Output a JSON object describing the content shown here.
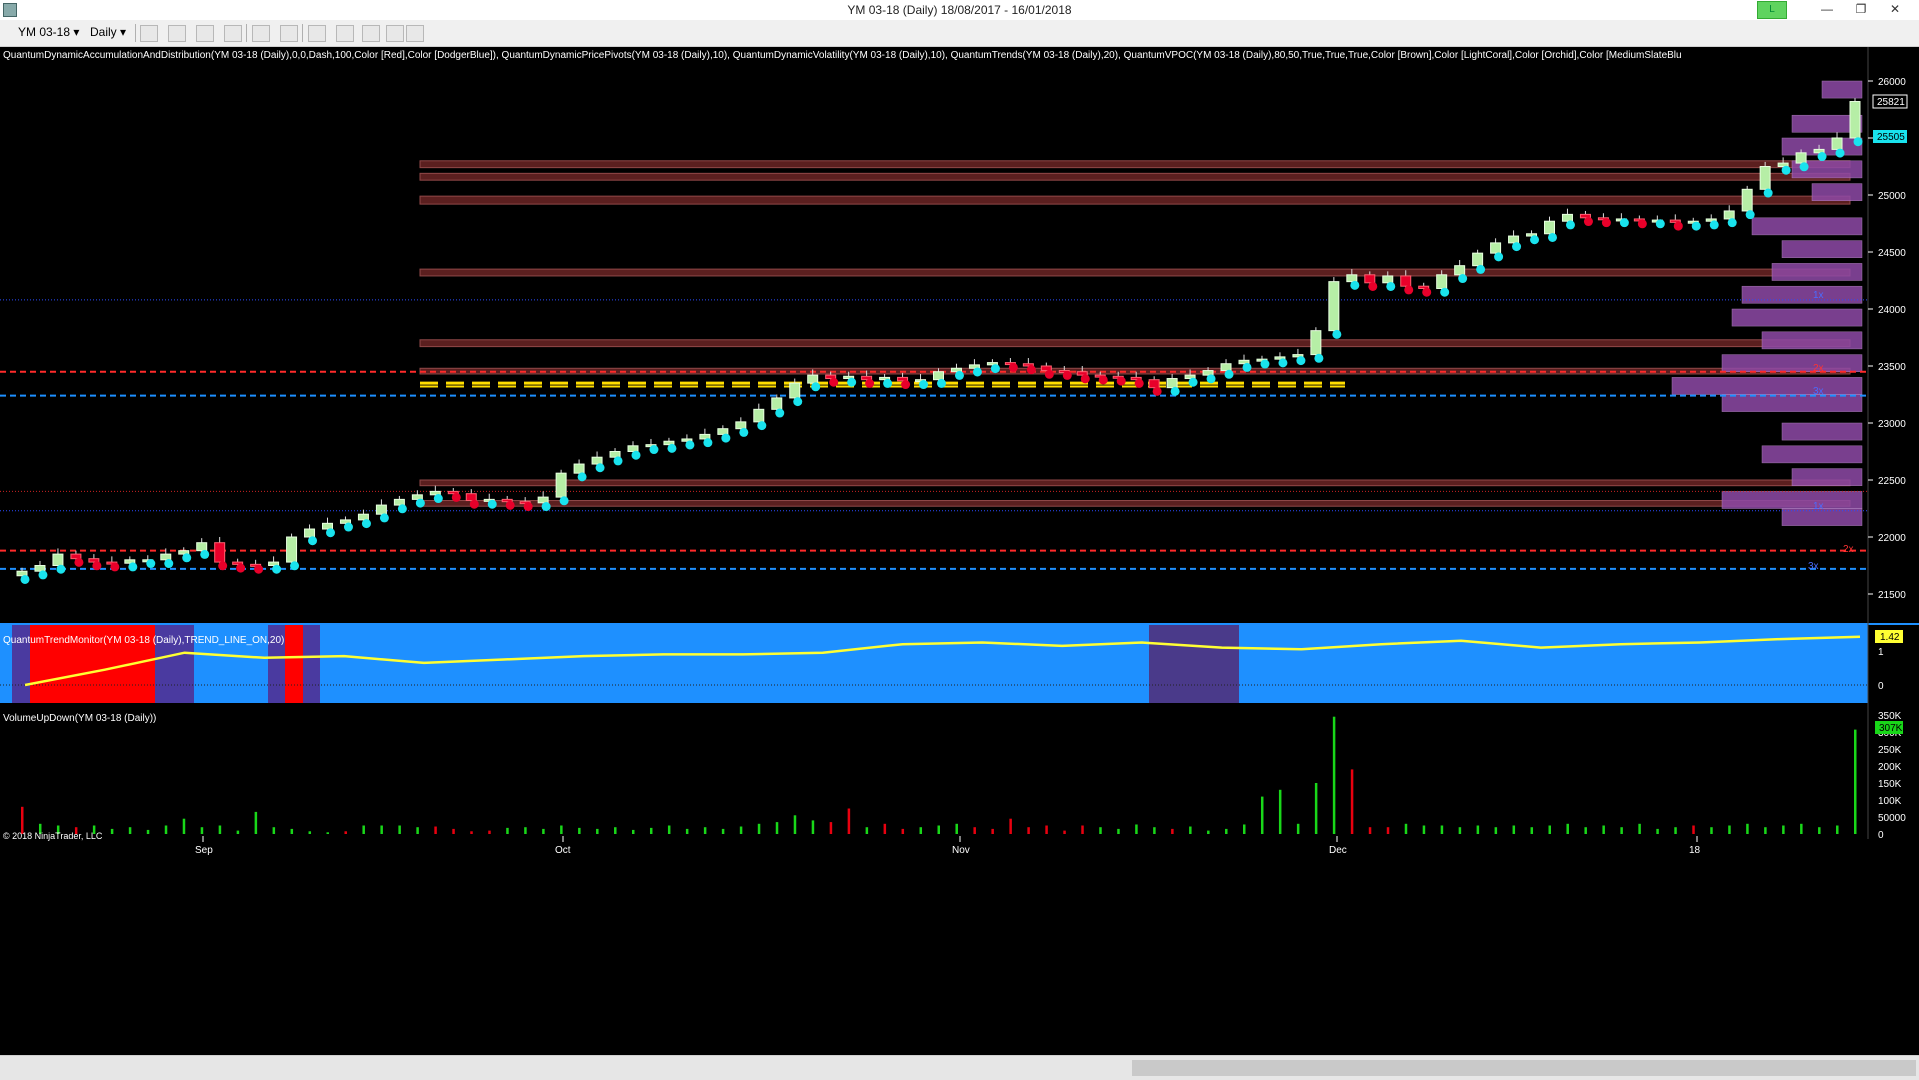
{
  "window": {
    "title": "YM 03-18 (Daily)  18/08/2017 - 16/01/2018",
    "account_badge": "L"
  },
  "toolbar": {
    "instrument": "YM 03-18",
    "period": "Daily"
  },
  "indicators_line": "QuantumDynamicAccumulationAndDistribution(YM 03-18 (Daily),0,0,Dash,100,Color [Red],Color [DodgerBlue]), QuantumDynamicPricePivots(YM 03-18 (Daily),10), QuantumDynamicVolatility(YM 03-18 (Daily),10), QuantumTrends(YM 03-18 (Daily),20), QuantumVPOC(YM 03-18 (Daily),80,50,True,True,True,Color [Brown],Color [LightCoral],Color [Orchid],Color [MediumSlateBlu",
  "price_axis": {
    "ticks": [
      "26000",
      "25500",
      "25000",
      "24500",
      "24000",
      "23500",
      "23000",
      "22500",
      "22000",
      "21500"
    ],
    "tick_values": [
      26000,
      25500,
      25000,
      24500,
      24000,
      23500,
      23000,
      22500,
      22000,
      21500
    ],
    "last_price_label": "25821",
    "current_label": "25505"
  },
  "level_markers": {
    "one_x_top": "1x",
    "one_x_bottom": "1x",
    "two_x": "2x",
    "three_x": "3x",
    "two_x_mid": "2x",
    "three_x_mid": "3x"
  },
  "trend_monitor": {
    "label": "QuantumTrendMonitor(YM 03-18 (Daily),TREND_LINE_ON,20)",
    "ticks": [
      "1",
      "0"
    ],
    "value_label": "1.42"
  },
  "volume": {
    "label": "VolumeUpDown(YM 03-18 (Daily))",
    "ticks": [
      "350K",
      "300K",
      "250K",
      "200K",
      "150K",
      "100K",
      "50000",
      "0"
    ],
    "value_label": "307K",
    "copyright": "© 2018 NinjaTrader, LLC"
  },
  "time_axis": {
    "labels": [
      "Sep",
      "Oct",
      "Nov",
      "Dec",
      "18"
    ]
  },
  "colors": {
    "background": "#000000",
    "up_candle": "#b6eea6",
    "down_candle": "#e8002a",
    "pivot_dot": "#19e3ee",
    "trend_bg": "#1e90ff",
    "trend_line": "#ffff33",
    "vol_up": "#19d719",
    "vol_down": "#e8000f",
    "vpoc": "#8f4aa7"
  },
  "chart_data": {
    "type": "candlestick",
    "instrument": "YM 03-18 (Daily)",
    "date_range": [
      "18/08/2017",
      "16/01/2018"
    ],
    "price_range": [
      21250,
      26400
    ],
    "close": [
      21700,
      21750,
      21850,
      21810,
      21780,
      21770,
      21800,
      21800,
      21850,
      21880,
      21950,
      21780,
      21760,
      21750,
      21780,
      22000,
      22070,
      22120,
      22150,
      22200,
      22280,
      22330,
      22370,
      22400,
      22380,
      22320,
      22330,
      22310,
      22300,
      22350,
      22560,
      22640,
      22700,
      22750,
      22800,
      22810,
      22840,
      22860,
      22900,
      22950,
      23010,
      23120,
      23220,
      23350,
      23420,
      23390,
      23410,
      23380,
      23400,
      23370,
      23380,
      23450,
      23480,
      23510,
      23530,
      23520,
      23500,
      23460,
      23450,
      23420,
      23410,
      23400,
      23380,
      23310,
      23390,
      23420,
      23460,
      23520,
      23550,
      23560,
      23580,
      23600,
      23810,
      24240,
      24300,
      24230,
      24290,
      24200,
      24180,
      24300,
      24380,
      24490,
      24580,
      24640,
      24660,
      24770,
      24830,
      24800,
      24790,
      24790,
      24780,
      24780,
      24760,
      24770,
      24790,
      24860,
      25050,
      25250,
      25280,
      25370,
      25400,
      25500,
      25820
    ],
    "volume_k": [
      80,
      30,
      25,
      20,
      25,
      15,
      20,
      12,
      25,
      45,
      20,
      25,
      10,
      65,
      20,
      15,
      8,
      5,
      8,
      25,
      25,
      25,
      20,
      22,
      15,
      8,
      10,
      18,
      20,
      15,
      25,
      18,
      15,
      20,
      12,
      18,
      25,
      15,
      20,
      15,
      22,
      30,
      35,
      55,
      40,
      35,
      75,
      20,
      30,
      15,
      20,
      25,
      30,
      20,
      15,
      45,
      20,
      25,
      10,
      25,
      20,
      15,
      28,
      20,
      15,
      22,
      10,
      15,
      28,
      110,
      130,
      30,
      150,
      345,
      190,
      20,
      20,
      30,
      25,
      25,
      20,
      25,
      20,
      25,
      20,
      25,
      30,
      20,
      25,
      20,
      30,
      15,
      20,
      25,
      20,
      25,
      30,
      20,
      25,
      30,
      20,
      25,
      307
    ],
    "vol_dir": [
      "d",
      "u",
      "u",
      "d",
      "u",
      "u",
      "u",
      "u",
      "u",
      "u",
      "u",
      "u",
      "u",
      "u",
      "u",
      "u",
      "u",
      "u",
      "d",
      "u",
      "u",
      "u",
      "u",
      "d",
      "d",
      "d",
      "d",
      "u",
      "u",
      "u",
      "u",
      "u",
      "u",
      "u",
      "u",
      "u",
      "u",
      "u",
      "u",
      "u",
      "u",
      "u",
      "u",
      "u",
      "u",
      "d",
      "d",
      "u",
      "d",
      "d",
      "u",
      "u",
      "u",
      "d",
      "d",
      "d",
      "d",
      "d",
      "d",
      "d",
      "u",
      "u",
      "u",
      "u",
      "d",
      "u",
      "u",
      "u",
      "u",
      "u",
      "u",
      "u",
      "u",
      "u",
      "d",
      "d",
      "d",
      "u",
      "u",
      "u",
      "u",
      "u",
      "u",
      "u",
      "u",
      "u",
      "u",
      "u",
      "u",
      "u",
      "u",
      "u",
      "u",
      "d",
      "u",
      "u",
      "u",
      "u",
      "u",
      "u",
      "u",
      "u",
      "u"
    ],
    "trend_values": [
      0.0,
      0.45,
      0.95,
      0.8,
      0.85,
      0.65,
      0.75,
      0.85,
      0.9,
      0.9,
      0.95,
      1.2,
      1.25,
      1.15,
      1.25,
      1.1,
      1.05,
      1.2,
      1.3,
      1.1,
      1.2,
      1.25,
      1.35,
      1.42
    ]
  }
}
